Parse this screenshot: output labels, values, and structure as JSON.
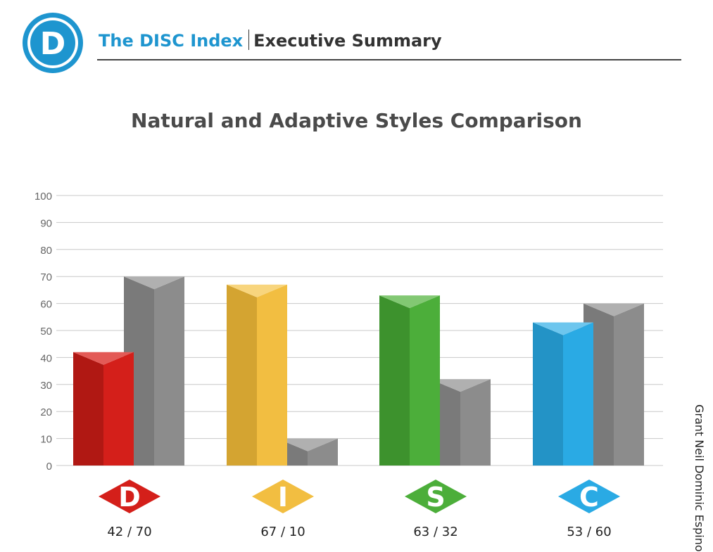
{
  "header": {
    "logo_letter": "D",
    "brand": "The DISC Index",
    "section": "Executive Summary"
  },
  "person": "Grant Neil Dominic Espino",
  "colors": {
    "brand_blue": "#1e95cf",
    "d_red": "#d41f1a",
    "i_yellow": "#f2be41",
    "s_green": "#4cae3a",
    "c_blue": "#2aaae4",
    "adaptive_gray": "#8c8c8c"
  },
  "chart_data": {
    "type": "bar",
    "title": "Natural and Adaptive Styles Comparison",
    "categories": [
      "D",
      "I",
      "S",
      "C"
    ],
    "category_labels": [
      "42 / 70",
      "67 / 10",
      "63 / 32",
      "53 / 60"
    ],
    "series": [
      {
        "values": [
          42,
          67,
          63,
          53
        ]
      },
      {
        "values": [
          70,
          10,
          32,
          60
        ]
      }
    ],
    "ylim": [
      0,
      100
    ],
    "yticks": [
      0,
      10,
      20,
      30,
      40,
      50,
      60,
      70,
      80,
      90,
      100
    ],
    "grid": true
  }
}
